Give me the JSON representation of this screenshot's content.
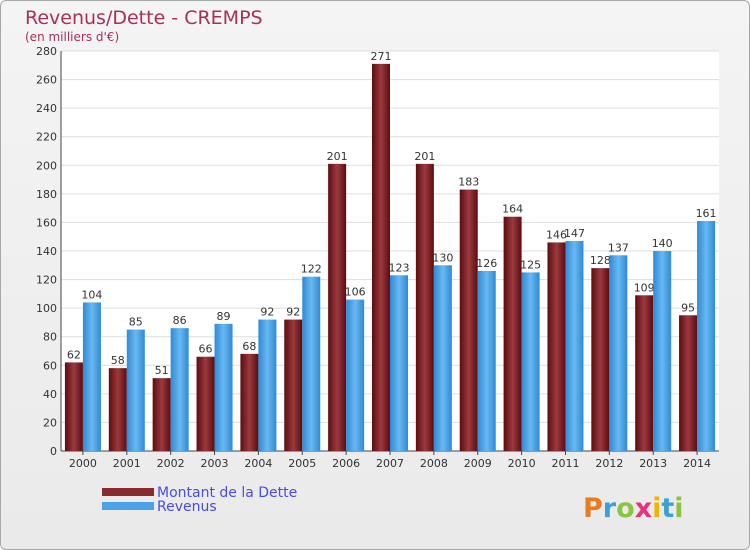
{
  "chart_data": {
    "type": "bar",
    "title": "Revenus/Dette - CREMPS",
    "subtitle": "(en milliers d'€)",
    "categories": [
      "2000",
      "2001",
      "2002",
      "2003",
      "2004",
      "2005",
      "2006",
      "2007",
      "2008",
      "2009",
      "2010",
      "2011",
      "2012",
      "2013",
      "2014"
    ],
    "series": [
      {
        "name": "Montant de la Dette",
        "color": "#8b2a2e",
        "values": [
          62,
          58,
          51,
          66,
          68,
          92,
          201,
          271,
          201,
          183,
          164,
          146,
          128,
          109,
          95
        ]
      },
      {
        "name": "Revenus",
        "color": "#4aa3e6",
        "values": [
          104,
          85,
          86,
          89,
          92,
          122,
          106,
          123,
          130,
          126,
          125,
          147,
          137,
          140,
          161
        ]
      }
    ],
    "ylim": [
      0,
      280
    ],
    "yticks": [
      0,
      20,
      40,
      60,
      80,
      100,
      120,
      140,
      160,
      180,
      200,
      220,
      240,
      260,
      280
    ],
    "grid": true,
    "legend_position": "bottom-left"
  },
  "logo": {
    "text": "Proxiti"
  }
}
